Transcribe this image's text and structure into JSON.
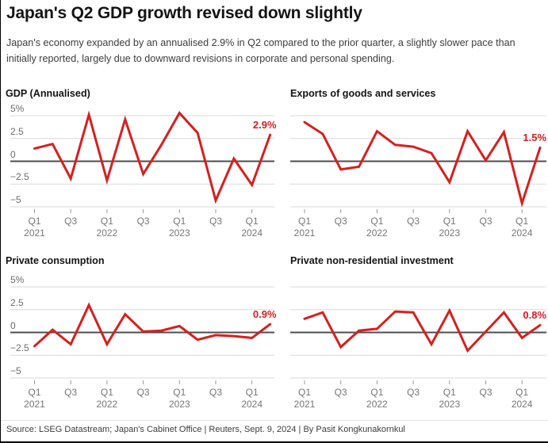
{
  "title": "Japan's Q2 GDP growth revised down slightly",
  "subtitle": "Japan's economy expanded by an annualised 2.9% in Q2 compared to the prior quarter, a slightly slower pace than initially reported, largely due to downward revisions in corporate and personal spending.",
  "source": "Source: LSEG Datastream; Japan's Cabinet Office | Reuters, Sept. 9, 2024 | By Pasit Kongkunakornkul",
  "colors": {
    "line_red": "#d6201f",
    "end_label_red": "#d6201f",
    "grid": "#d9d9d9",
    "zero_line": "#4d4d4d",
    "tick": "#999999",
    "axis_text": "#767676"
  },
  "axis": {
    "y_labels": [
      "5%",
      "2.5",
      "0",
      "−2.5",
      "−5"
    ],
    "ylim": [
      -5,
      5
    ],
    "x_ticks": [
      {
        "index": 0,
        "label": "Q1",
        "year": "2021"
      },
      {
        "index": 2,
        "label": "Q3",
        "year": ""
      },
      {
        "index": 4,
        "label": "Q1",
        "year": "2022"
      },
      {
        "index": 6,
        "label": "Q3",
        "year": ""
      },
      {
        "index": 8,
        "label": "Q1",
        "year": "2023"
      },
      {
        "index": 10,
        "label": "Q3",
        "year": ""
      },
      {
        "index": 12,
        "label": "Q1",
        "year": "2024"
      }
    ]
  },
  "chart_data": [
    {
      "type": "line",
      "title": "GDP (Annualised)",
      "x": [
        "Q1 2021",
        "Q2 2021",
        "Q3 2021",
        "Q4 2021",
        "Q1 2022",
        "Q2 2022",
        "Q3 2022",
        "Q4 2022",
        "Q1 2023",
        "Q2 2023",
        "Q3 2023",
        "Q4 2023",
        "Q1 2024",
        "Q2 2024"
      ],
      "values": [
        1.4,
        1.9,
        -1.9,
        5.1,
        -2.1,
        4.6,
        -1.4,
        1.8,
        5.3,
        3.1,
        -4.3,
        0.3,
        -2.6,
        2.9
      ],
      "end_label": "2.9%",
      "ylim": [
        -5,
        5
      ],
      "grid": true,
      "legend": "none"
    },
    {
      "type": "line",
      "title": "Exports of goods and services",
      "x": [
        "Q1 2021",
        "Q2 2021",
        "Q3 2021",
        "Q4 2021",
        "Q1 2022",
        "Q2 2022",
        "Q3 2022",
        "Q4 2022",
        "Q1 2023",
        "Q2 2023",
        "Q3 2023",
        "Q4 2023",
        "Q1 2024",
        "Q2 2024"
      ],
      "values": [
        4.3,
        3.0,
        -0.9,
        -0.6,
        3.3,
        1.8,
        1.6,
        0.9,
        -2.3,
        3.3,
        0.1,
        3.2,
        -4.6,
        1.5
      ],
      "end_label": "1.5%",
      "ylim": [
        -5,
        5
      ],
      "grid": true,
      "legend": "none"
    },
    {
      "type": "line",
      "title": "Private consumption",
      "x": [
        "Q1 2021",
        "Q2 2021",
        "Q3 2021",
        "Q4 2021",
        "Q1 2022",
        "Q2 2022",
        "Q3 2022",
        "Q4 2022",
        "Q1 2023",
        "Q2 2023",
        "Q3 2023",
        "Q4 2023",
        "Q1 2024",
        "Q2 2024"
      ],
      "values": [
        -1.5,
        0.3,
        -1.3,
        3.0,
        -1.3,
        2.0,
        0.1,
        0.2,
        0.7,
        -0.8,
        -0.3,
        -0.4,
        -0.6,
        0.9
      ],
      "end_label": "0.9%",
      "ylim": [
        -5,
        5
      ],
      "grid": true,
      "legend": "none"
    },
    {
      "type": "line",
      "title": "Private non-residential investment",
      "x": [
        "Q1 2021",
        "Q2 2021",
        "Q3 2021",
        "Q4 2021",
        "Q1 2022",
        "Q2 2022",
        "Q3 2022",
        "Q4 2022",
        "Q1 2023",
        "Q2 2023",
        "Q3 2023",
        "Q4 2023",
        "Q1 2024",
        "Q2 2024"
      ],
      "values": [
        1.5,
        2.2,
        -1.6,
        0.2,
        0.4,
        2.3,
        2.2,
        -1.3,
        2.4,
        -2.0,
        0.1,
        2.2,
        -0.6,
        0.8
      ],
      "end_label": "0.8%",
      "ylim": [
        -5,
        5
      ],
      "grid": true,
      "legend": "none"
    }
  ]
}
